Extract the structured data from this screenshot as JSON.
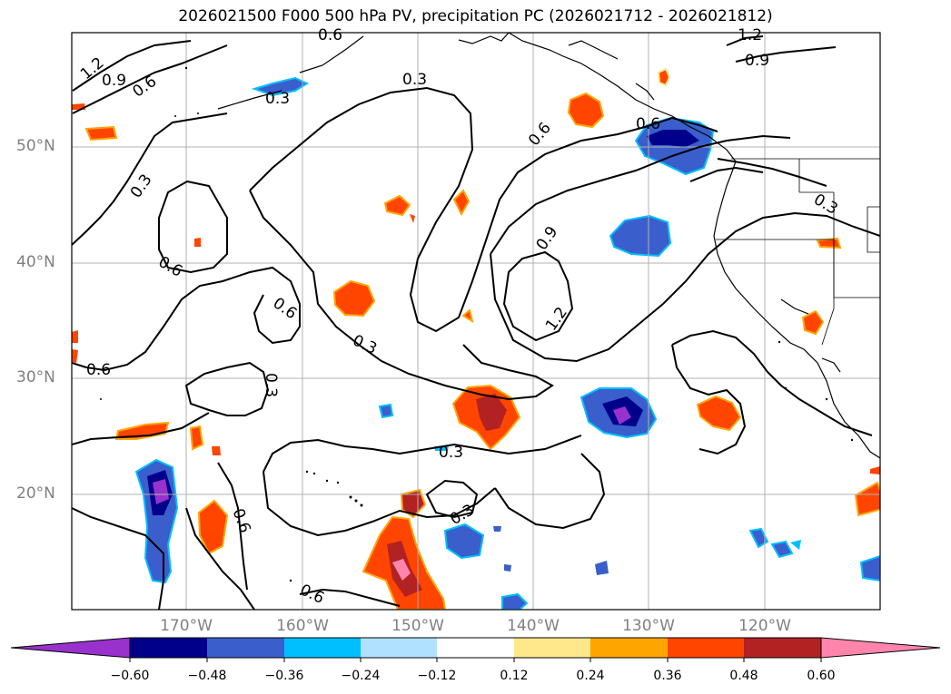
{
  "title": "2026021500 F000 500 hPa PV, precipitation PC (2026021712 - 2026021812)",
  "lat_labels": [
    "50°N",
    "40°N",
    "30°N",
    "20°N"
  ],
  "lon_labels": [
    "170°W",
    "160°W",
    "150°W",
    "140°W",
    "130°W",
    "120°W"
  ],
  "contour_labels": [
    "1.2",
    "0.9",
    "0.6",
    "0.3",
    "0.9",
    "1.2",
    "0.6",
    "0.3",
    "0.6",
    "0.3",
    "0.6",
    "0.3",
    "0.6",
    "0.3",
    "0.9",
    "1.2",
    "0.6",
    "0.3",
    "0.3",
    "0.6",
    "0.3",
    "0.6",
    "0.6"
  ],
  "colorbar": {
    "ticks": [
      "−0.60",
      "−0.48",
      "−0.36",
      "−0.24",
      "−0.12",
      "0.12",
      "0.24",
      "0.36",
      "0.48",
      "0.60"
    ],
    "colors": [
      "#9932cc",
      "#00008b",
      "#3a5fcd",
      "#00bfff",
      "#b0e2ff",
      "#ffffff",
      "#ffe88c",
      "#ffa500",
      "#ff4500",
      "#b22222",
      "#ff85ad"
    ]
  }
}
